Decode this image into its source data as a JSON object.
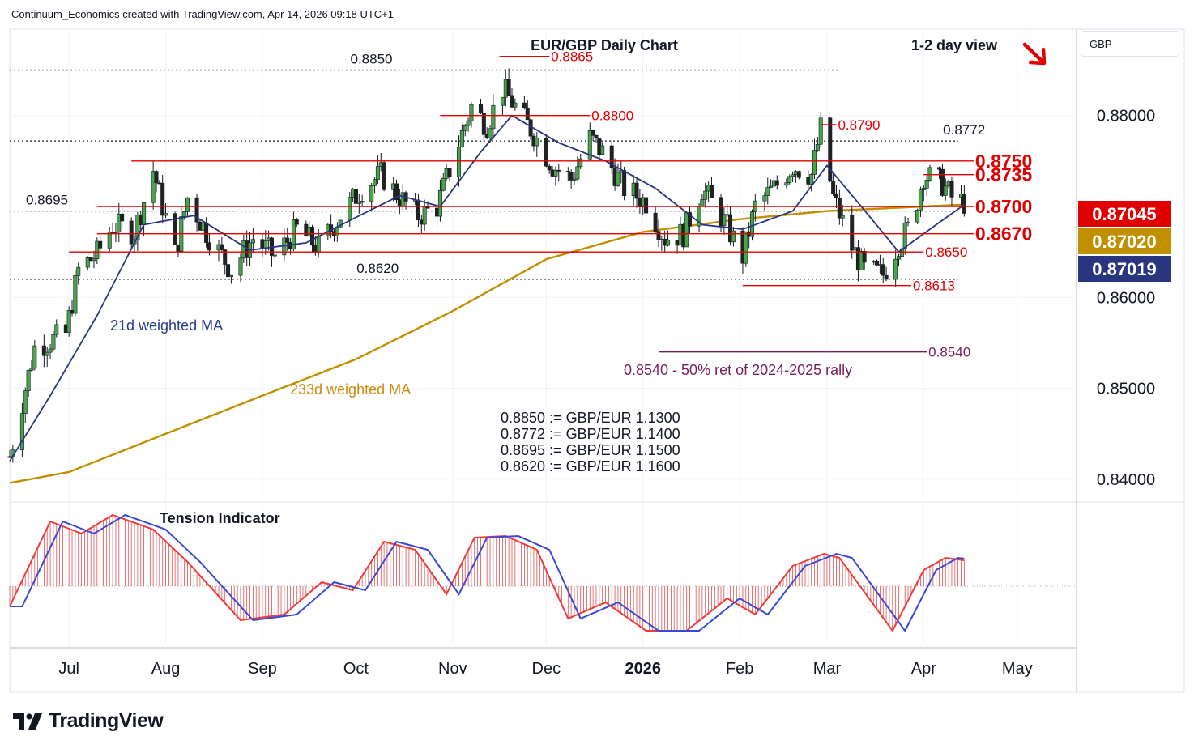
{
  "header": "Continuum_Economics created with TradingView.com, Apr 14, 2026 09:18 UTC+1",
  "brand": "TradingView",
  "currency_box": "GBP",
  "colors": {
    "red": "#e00000",
    "navy": "#2a3580",
    "gold": "#c09000",
    "bull": "#49a54a",
    "bear": "#222222"
  },
  "chart_data": {
    "type": "candlestick",
    "title": "EUR/GBP Daily Chart",
    "subtitle": "1-2 day view",
    "ylim": [
      0.8375,
      0.8895
    ],
    "y_ticks": [
      "0.84000",
      "0.85000",
      "0.86000",
      "0.88000"
    ],
    "x_ticks": [
      {
        "label": "Jul",
        "date": "2025-07-01"
      },
      {
        "label": "Aug",
        "date": "2025-08-01"
      },
      {
        "label": "Sep",
        "date": "2025-09-01"
      },
      {
        "label": "Oct",
        "date": "2025-10-01"
      },
      {
        "label": "Nov",
        "date": "2025-11-01"
      },
      {
        "label": "Dec",
        "date": "2025-12-01"
      },
      {
        "label": "2026",
        "date": "2026-01-01",
        "bold": true
      },
      {
        "label": "Feb",
        "date": "2026-02-01"
      },
      {
        "label": "Mar",
        "date": "2026-03-01"
      },
      {
        "label": "Apr",
        "date": "2026-04-01"
      },
      {
        "label": "May",
        "date": "2026-05-01"
      }
    ],
    "x_range": [
      "2025-06-12",
      "2026-05-20"
    ],
    "last_date": "2026-04-14",
    "price_path": [
      {
        "date": "2025-06-12",
        "close": 0.8425
      },
      {
        "date": "2025-06-20",
        "close": 0.8545
      },
      {
        "date": "2025-06-30",
        "close": 0.856
      },
      {
        "date": "2025-07-04",
        "close": 0.863
      },
      {
        "date": "2025-07-10",
        "close": 0.8648
      },
      {
        "date": "2025-07-15",
        "close": 0.868
      },
      {
        "date": "2025-07-22",
        "close": 0.8672
      },
      {
        "date": "2025-07-28",
        "close": 0.874
      },
      {
        "date": "2025-08-04",
        "close": 0.8648
      },
      {
        "date": "2025-08-08",
        "close": 0.871
      },
      {
        "date": "2025-08-14",
        "close": 0.8672
      },
      {
        "date": "2025-08-22",
        "close": 0.863
      },
      {
        "date": "2025-08-29",
        "close": 0.8665
      },
      {
        "date": "2025-09-05",
        "close": 0.8645
      },
      {
        "date": "2025-09-12",
        "close": 0.8675
      },
      {
        "date": "2025-09-19",
        "close": 0.8655
      },
      {
        "date": "2025-09-26",
        "close": 0.869
      },
      {
        "date": "2025-10-03",
        "close": 0.872
      },
      {
        "date": "2025-10-09",
        "close": 0.8735
      },
      {
        "date": "2025-10-15",
        "close": 0.871
      },
      {
        "date": "2025-10-21",
        "close": 0.869
      },
      {
        "date": "2025-10-27",
        "close": 0.87
      },
      {
        "date": "2025-11-02",
        "close": 0.876
      },
      {
        "date": "2025-11-07",
        "close": 0.881
      },
      {
        "date": "2025-11-12",
        "close": 0.879
      },
      {
        "date": "2025-11-17",
        "close": 0.883
      },
      {
        "date": "2025-11-21",
        "close": 0.881
      },
      {
        "date": "2025-11-27",
        "close": 0.878
      },
      {
        "date": "2025-12-03",
        "close": 0.8745
      },
      {
        "date": "2025-12-09",
        "close": 0.873
      },
      {
        "date": "2025-12-15",
        "close": 0.8775
      },
      {
        "date": "2025-12-19",
        "close": 0.876
      },
      {
        "date": "2025-12-26",
        "close": 0.872
      },
      {
        "date": "2026-01-02",
        "close": 0.8705
      },
      {
        "date": "2026-01-08",
        "close": 0.8665
      },
      {
        "date": "2026-01-14",
        "close": 0.867
      },
      {
        "date": "2026-01-20",
        "close": 0.872
      },
      {
        "date": "2026-01-26",
        "close": 0.869
      },
      {
        "date": "2026-02-02",
        "close": 0.8645
      },
      {
        "date": "2026-02-06",
        "close": 0.87
      },
      {
        "date": "2026-02-12",
        "close": 0.872
      },
      {
        "date": "2026-02-18",
        "close": 0.8745
      },
      {
        "date": "2026-02-24",
        "close": 0.8735
      },
      {
        "date": "2026-02-27",
        "close": 0.8785
      },
      {
        "date": "2026-03-03",
        "close": 0.871
      },
      {
        "date": "2026-03-09",
        "close": 0.8655
      },
      {
        "date": "2026-03-13",
        "close": 0.863
      },
      {
        "date": "2026-03-19",
        "close": 0.8625
      },
      {
        "date": "2026-03-24",
        "close": 0.866
      },
      {
        "date": "2026-03-28",
        "close": 0.868
      },
      {
        "date": "2026-04-01",
        "close": 0.8735
      },
      {
        "date": "2026-04-07",
        "close": 0.8725
      },
      {
        "date": "2026-04-10",
        "close": 0.871
      },
      {
        "date": "2026-04-14",
        "close": 0.87045
      }
    ],
    "wma21_path": [
      {
        "date": "2025-06-12",
        "value": 0.842
      },
      {
        "date": "2025-06-25",
        "value": 0.8492
      },
      {
        "date": "2025-07-10",
        "value": 0.858
      },
      {
        "date": "2025-07-25",
        "value": 0.868
      },
      {
        "date": "2025-08-10",
        "value": 0.869
      },
      {
        "date": "2025-08-28",
        "value": 0.8652
      },
      {
        "date": "2025-09-15",
        "value": 0.866
      },
      {
        "date": "2025-10-01",
        "value": 0.8688
      },
      {
        "date": "2025-10-15",
        "value": 0.8712
      },
      {
        "date": "2025-10-28",
        "value": 0.87
      },
      {
        "date": "2025-11-10",
        "value": 0.876
      },
      {
        "date": "2025-11-20",
        "value": 0.88
      },
      {
        "date": "2025-12-05",
        "value": 0.877
      },
      {
        "date": "2025-12-20",
        "value": 0.875
      },
      {
        "date": "2026-01-05",
        "value": 0.872
      },
      {
        "date": "2026-01-20",
        "value": 0.868
      },
      {
        "date": "2026-02-02",
        "value": 0.8675
      },
      {
        "date": "2026-02-18",
        "value": 0.8695
      },
      {
        "date": "2026-03-01",
        "value": 0.8745
      },
      {
        "date": "2026-03-12",
        "value": 0.87
      },
      {
        "date": "2026-03-24",
        "value": 0.865
      },
      {
        "date": "2026-04-05",
        "value": 0.868
      },
      {
        "date": "2026-04-14",
        "value": 0.87019
      }
    ],
    "wma233_path": [
      {
        "date": "2025-06-12",
        "value": 0.8396
      },
      {
        "date": "2025-07-01",
        "value": 0.8408
      },
      {
        "date": "2025-08-01",
        "value": 0.845
      },
      {
        "date": "2025-09-01",
        "value": 0.8492
      },
      {
        "date": "2025-10-01",
        "value": 0.8532
      },
      {
        "date": "2025-11-01",
        "value": 0.8585
      },
      {
        "date": "2025-12-01",
        "value": 0.8642
      },
      {
        "date": "2026-01-01",
        "value": 0.8672
      },
      {
        "date": "2026-02-01",
        "value": 0.8686
      },
      {
        "date": "2026-03-01",
        "value": 0.8695
      },
      {
        "date": "2026-04-01",
        "value": 0.87
      },
      {
        "date": "2026-04-14",
        "value": 0.8702
      }
    ],
    "tension_path": [
      {
        "date": "2025-06-12",
        "value": -0.25
      },
      {
        "date": "2025-06-25",
        "value": 0.8
      },
      {
        "date": "2025-07-05",
        "value": 0.65
      },
      {
        "date": "2025-07-15",
        "value": 0.88
      },
      {
        "date": "2025-07-28",
        "value": 0.7
      },
      {
        "date": "2025-08-08",
        "value": 0.3
      },
      {
        "date": "2025-08-25",
        "value": -0.42
      },
      {
        "date": "2025-09-08",
        "value": -0.35
      },
      {
        "date": "2025-09-20",
        "value": 0.05
      },
      {
        "date": "2025-09-30",
        "value": -0.05
      },
      {
        "date": "2025-10-10",
        "value": 0.55
      },
      {
        "date": "2025-10-20",
        "value": 0.45
      },
      {
        "date": "2025-10-30",
        "value": -0.1
      },
      {
        "date": "2025-11-08",
        "value": 0.6
      },
      {
        "date": "2025-11-18",
        "value": 0.62
      },
      {
        "date": "2025-11-28",
        "value": 0.45
      },
      {
        "date": "2025-12-08",
        "value": -0.4
      },
      {
        "date": "2025-12-20",
        "value": -0.2
      },
      {
        "date": "2026-01-02",
        "value": -0.55
      },
      {
        "date": "2026-01-15",
        "value": -0.55
      },
      {
        "date": "2026-01-28",
        "value": -0.15
      },
      {
        "date": "2026-02-06",
        "value": -0.35
      },
      {
        "date": "2026-02-18",
        "value": 0.25
      },
      {
        "date": "2026-02-28",
        "value": 0.4
      },
      {
        "date": "2026-03-05",
        "value": 0.35
      },
      {
        "date": "2026-03-22",
        "value": -0.55
      },
      {
        "date": "2026-04-01",
        "value": 0.2
      },
      {
        "date": "2026-04-08",
        "value": 0.35
      },
      {
        "date": "2026-04-14",
        "value": 0.32
      }
    ],
    "labels": {
      "tension": "Tension Indicator",
      "wma21": "21d weighted MA",
      "wma233": "233d weighted MA",
      "ret50": "0.8540 - 50% ret of 2024-2025 rally"
    },
    "resistance_support": [
      {
        "label": "0.8865",
        "value": 0.8865,
        "start": "2025-11-16",
        "end": "2025-12-02",
        "color": "red",
        "size": "small"
      },
      {
        "label": "0.8800",
        "value": 0.88,
        "start": "2025-10-28",
        "end": "2025-12-15",
        "color": "red",
        "size": "small"
      },
      {
        "label": "0.8790",
        "value": 0.879,
        "start": "2026-02-27",
        "end": "2026-03-04",
        "color": "red",
        "size": "small"
      },
      {
        "label": "0.8750",
        "value": 0.875,
        "start": "2025-07-21",
        "end": "2026-04-17",
        "color": "red",
        "size": "large"
      },
      {
        "label": "0.8735",
        "value": 0.8735,
        "start": "2026-04-01",
        "end": "2026-04-17",
        "color": "red",
        "size": "large"
      },
      {
        "label": "0.8700",
        "value": 0.87,
        "start": "2025-07-10",
        "end": "2026-04-17",
        "color": "red",
        "size": "large"
      },
      {
        "label": "0.8670",
        "value": 0.867,
        "start": "2025-07-10",
        "end": "2026-04-17",
        "color": "red",
        "size": "large"
      },
      {
        "label": "0.8650",
        "value": 0.865,
        "start": "2025-07-01",
        "end": "2026-04-01",
        "color": "red",
        "size": "small"
      },
      {
        "label": "0.8613",
        "value": 0.8613,
        "start": "2026-02-02",
        "end": "2026-03-28",
        "color": "red",
        "size": "small"
      },
      {
        "label": "0.8540",
        "value": 0.854,
        "start": "2026-01-06",
        "end": "2026-04-02",
        "color": "purple",
        "size": "small"
      }
    ],
    "dotted_levels": [
      {
        "label": "0.8850",
        "value": 0.885,
        "end": "2026-03-05",
        "label_date": "2025-09-24"
      },
      {
        "label": "0.8772",
        "value": 0.8772,
        "end": "2026-04-12",
        "label_date": "2026-04-02"
      },
      {
        "label": "0.8695",
        "value": 0.8695,
        "end": "2026-04-12",
        "label_date": "2025-06-12"
      },
      {
        "label": "0.8620",
        "value": 0.862,
        "end": "2026-04-12",
        "label_date": "2025-09-26"
      }
    ],
    "notes": [
      "0.8850 := GBP/EUR 1.1300",
      "0.8772 := GBP/EUR 1.1400",
      "0.8695 := GBP/EUR 1.1500",
      "0.8620 := GBP/EUR 1.1600"
    ],
    "price_tags": [
      {
        "label": "0.87045",
        "value": 0.87045,
        "color": "#e00000"
      },
      {
        "label": "0.87020",
        "value": 0.8702,
        "color": "#c09000"
      },
      {
        "label": "0.87019",
        "value": 0.87019,
        "color": "#2a3580"
      }
    ]
  }
}
